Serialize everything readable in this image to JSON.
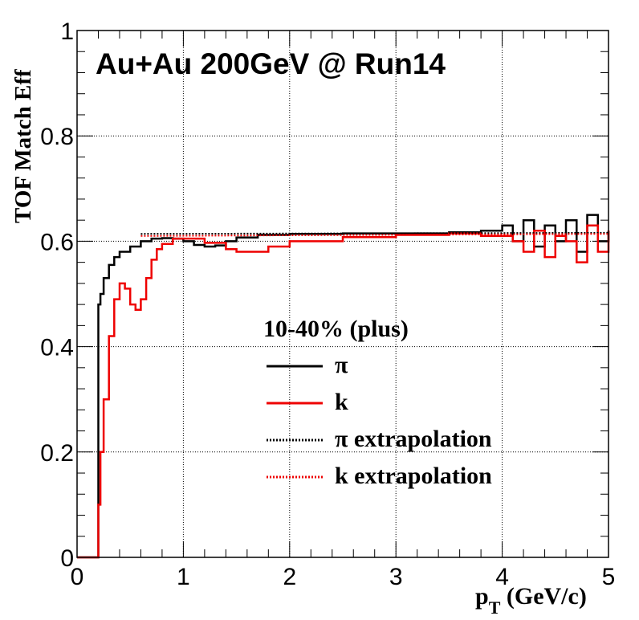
{
  "chart_data": {
    "type": "line",
    "title": "Au+Au 200GeV @ Run14",
    "xlabel_main": "p",
    "xlabel_sub": "T",
    "xlabel_rest": " (GeV/c)",
    "ylabel": "TOF Match Eff",
    "xlim": [
      0,
      5
    ],
    "ylim": [
      0,
      1
    ],
    "grid": true,
    "legend_placement": "center-right",
    "x_tick_labels": [
      "0",
      "1",
      "2",
      "3",
      "4",
      "5"
    ],
    "y_tick_labels": [
      "0",
      "0.2",
      "0.4",
      "0.6",
      "0.8",
      "1"
    ],
    "legend": {
      "header": "10-40% (plus)",
      "entries": [
        {
          "label": "π",
          "color": "#000000",
          "style": "solid"
        },
        {
          "label": "k",
          "color": "#ee0000",
          "style": "solid"
        },
        {
          "label": "π extrapolation",
          "color": "#000000",
          "style": "dotted"
        },
        {
          "label": "k extrapolation",
          "color": "#ee0000",
          "style": "dotted"
        }
      ]
    },
    "series": [
      {
        "key": "pi",
        "color": "#000000",
        "style": "solid",
        "x": [
          0.0,
          0.19,
          0.2,
          0.22,
          0.25,
          0.3,
          0.35,
          0.4,
          0.5,
          0.6,
          0.7,
          0.8,
          0.9,
          1.0,
          1.1,
          1.2,
          1.3,
          1.4,
          1.5,
          1.7,
          2.0,
          2.5,
          3.0,
          3.5,
          3.8,
          4.0,
          4.1,
          4.2,
          4.3,
          4.4,
          4.5,
          4.6,
          4.7,
          4.8,
          4.9,
          5.0
        ],
        "y": [
          0.0,
          0.0,
          0.48,
          0.5,
          0.53,
          0.555,
          0.57,
          0.58,
          0.59,
          0.6,
          0.605,
          0.606,
          0.605,
          0.6,
          0.593,
          0.59,
          0.592,
          0.6,
          0.607,
          0.612,
          0.614,
          0.615,
          0.615,
          0.617,
          0.62,
          0.63,
          0.6,
          0.64,
          0.59,
          0.63,
          0.6,
          0.64,
          0.58,
          0.65,
          0.6,
          0.62
        ]
      },
      {
        "key": "k",
        "color": "#ee0000",
        "style": "solid",
        "x": [
          0.0,
          0.19,
          0.2,
          0.22,
          0.25,
          0.3,
          0.35,
          0.4,
          0.45,
          0.5,
          0.55,
          0.6,
          0.65,
          0.7,
          0.75,
          0.8,
          0.9,
          1.0,
          1.2,
          1.4,
          1.5,
          1.6,
          1.8,
          2.0,
          2.5,
          3.0,
          3.5,
          3.8,
          4.0,
          4.1,
          4.2,
          4.3,
          4.4,
          4.5,
          4.6,
          4.7,
          4.8,
          4.9,
          5.0
        ],
        "y": [
          0.0,
          0.0,
          0.1,
          0.2,
          0.3,
          0.42,
          0.49,
          0.52,
          0.51,
          0.48,
          0.47,
          0.49,
          0.53,
          0.565,
          0.585,
          0.595,
          0.605,
          0.605,
          0.597,
          0.585,
          0.58,
          0.58,
          0.59,
          0.6,
          0.608,
          0.612,
          0.615,
          0.61,
          0.61,
          0.6,
          0.58,
          0.62,
          0.57,
          0.61,
          0.6,
          0.56,
          0.63,
          0.58,
          0.62
        ]
      },
      {
        "key": "pi-extrap",
        "color": "#000000",
        "style": "dotted",
        "x": [
          0.6,
          5.0
        ],
        "y": [
          0.614,
          0.616
        ]
      },
      {
        "key": "k-extrap",
        "color": "#ee0000",
        "style": "dotted",
        "x": [
          0.6,
          5.0
        ],
        "y": [
          0.61,
          0.614
        ]
      }
    ]
  }
}
